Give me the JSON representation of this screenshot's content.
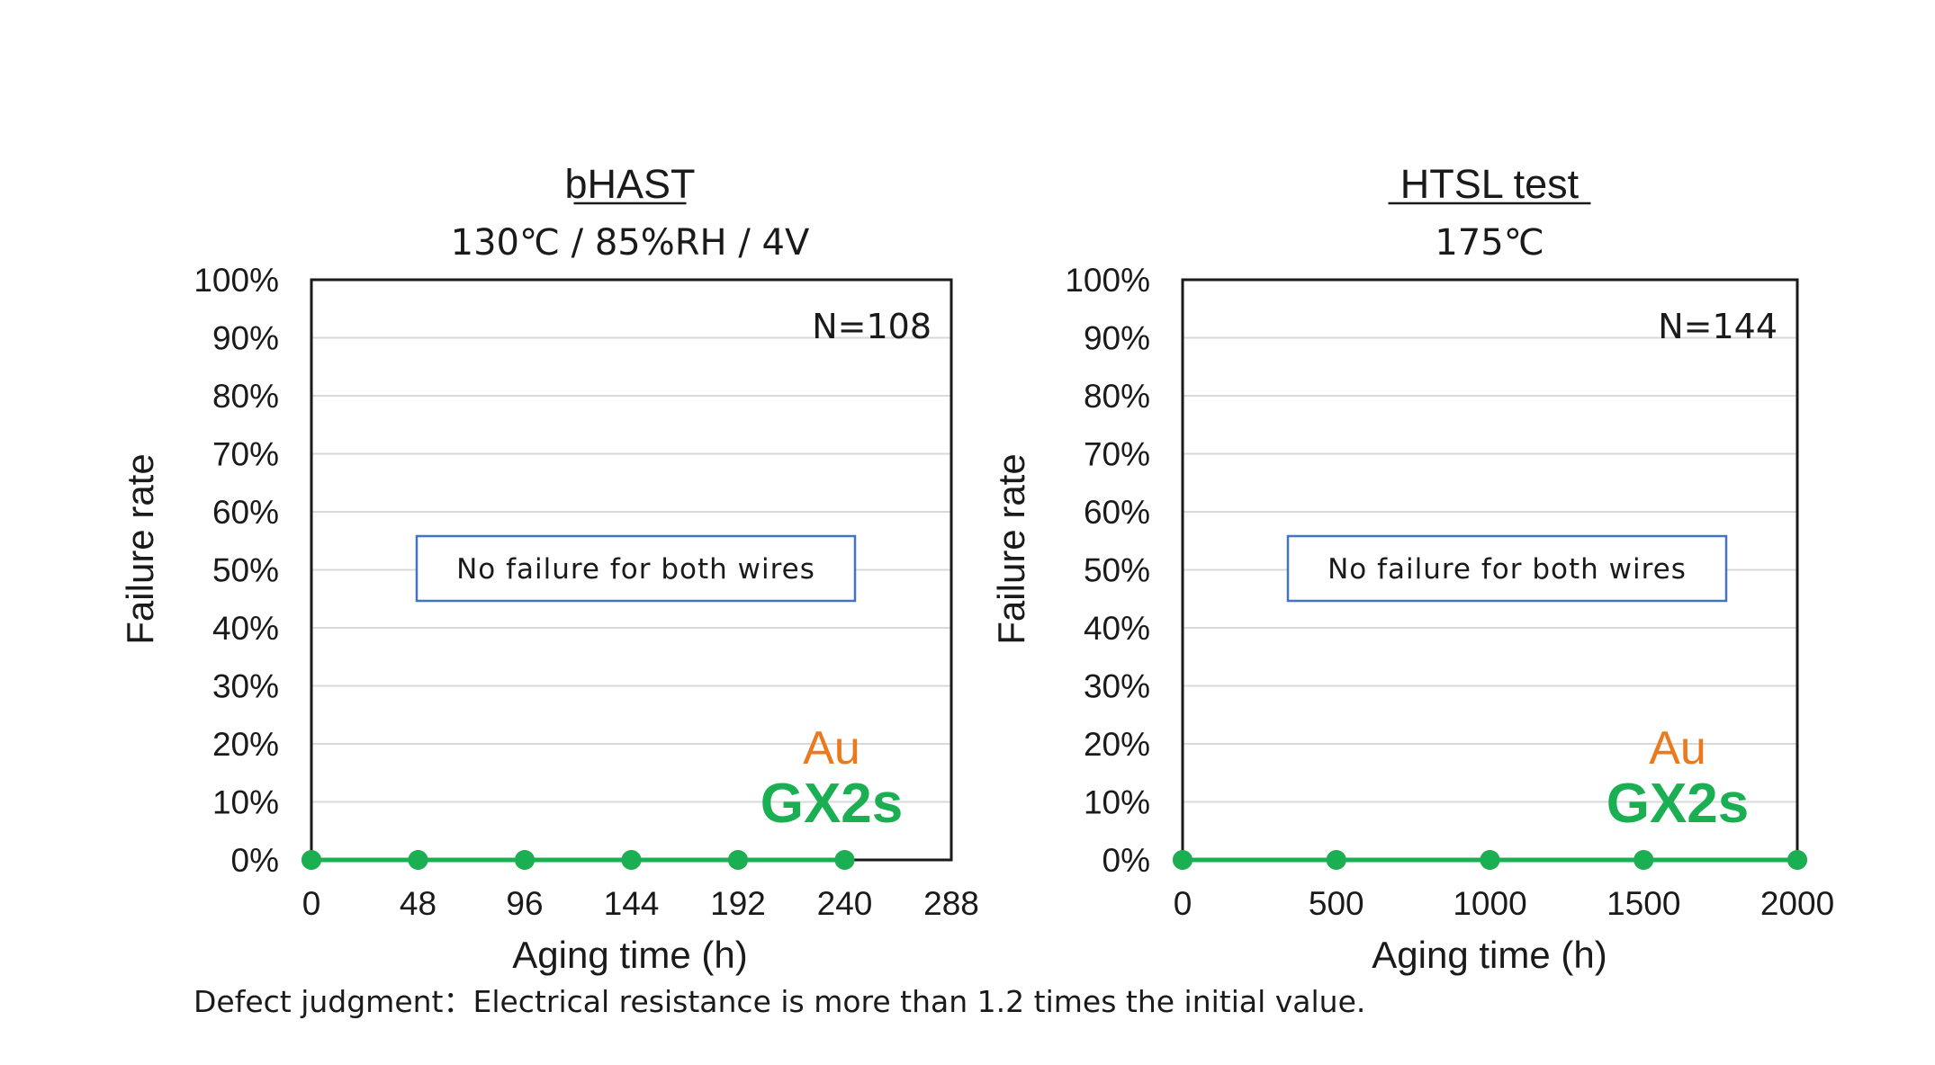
{
  "chart_data": [
    {
      "type": "line",
      "title": "bHAST",
      "subtitle": "130℃ / 85%RH / 4V",
      "xlabel": "Aging time (h)",
      "ylabel": "Failure rate",
      "x_ticks": [
        "0",
        "48",
        "96",
        "144",
        "192",
        "240",
        "288"
      ],
      "x_range": [
        0,
        288
      ],
      "y_ticks": [
        "0%",
        "10%",
        "20%",
        "30%",
        "40%",
        "50%",
        "60%",
        "70%",
        "80%",
        "90%",
        "100%"
      ],
      "y_range": [
        0,
        100
      ],
      "grid": "horizontal",
      "n_label": "N=108",
      "annotation": "No failure for both wires",
      "series": [
        {
          "name": "Au",
          "color": "#E97A1E",
          "x": [
            0,
            48,
            96,
            144,
            192,
            240
          ],
          "y": [
            0,
            0,
            0,
            0,
            0,
            0
          ]
        },
        {
          "name": "GX2s",
          "color": "#1BAF54",
          "x": [
            0,
            48,
            96,
            144,
            192,
            240
          ],
          "y": [
            0,
            0,
            0,
            0,
            0,
            0
          ]
        }
      ]
    },
    {
      "type": "line",
      "title": "HTSL test",
      "subtitle": "175℃",
      "xlabel": "Aging time (h)",
      "ylabel": "Failure rate",
      "x_ticks": [
        "0",
        "500",
        "1000",
        "1500",
        "2000"
      ],
      "x_range": [
        0,
        2000
      ],
      "y_ticks": [
        "0%",
        "10%",
        "20%",
        "30%",
        "40%",
        "50%",
        "60%",
        "70%",
        "80%",
        "90%",
        "100%"
      ],
      "y_range": [
        0,
        100
      ],
      "grid": "horizontal",
      "n_label": "N=144",
      "annotation": "No failure for both wires",
      "series": [
        {
          "name": "Au",
          "color": "#E97A1E",
          "x": [
            0,
            500,
            1000,
            1500,
            2000
          ],
          "y": [
            0,
            0,
            0,
            0,
            0
          ]
        },
        {
          "name": "GX2s",
          "color": "#1BAF54",
          "x": [
            0,
            500,
            1000,
            1500,
            2000
          ],
          "y": [
            0,
            0,
            0,
            0,
            0
          ]
        }
      ]
    }
  ],
  "footnote": "Defect judgment：Electrical resistance is more than 1.2 times the initial value."
}
